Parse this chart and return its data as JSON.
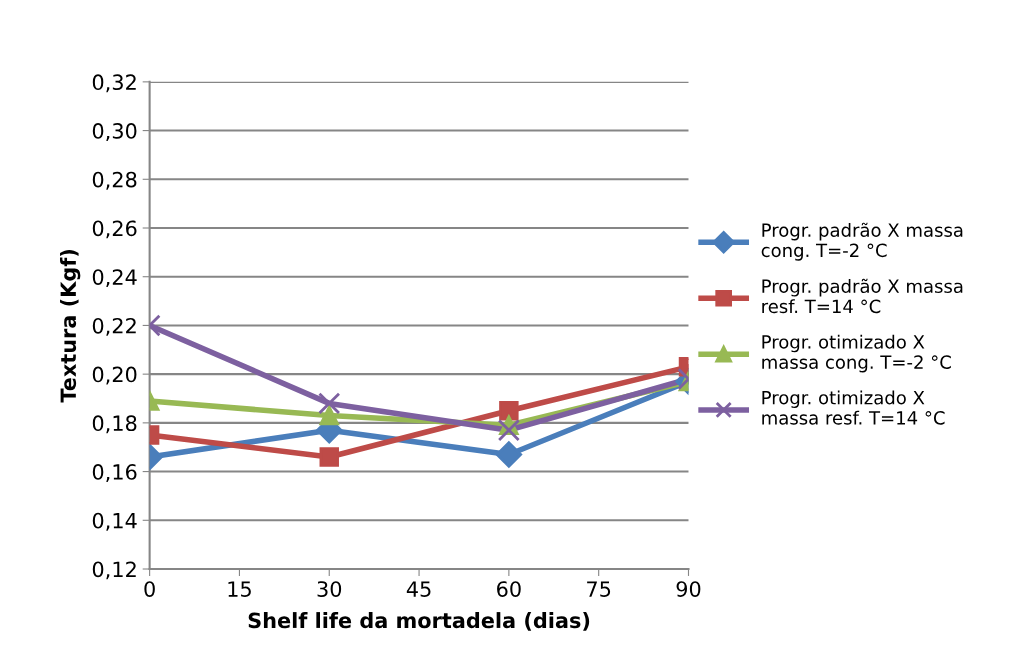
{
  "chart_data": {
    "type": "line",
    "xlabel": "Shelf life da mortadela (dias)",
    "ylabel": "Textura (Kgf)",
    "x": [
      0,
      30,
      60,
      90
    ],
    "series": [
      {
        "name": "Progr. padrão X massa\ncong. T=-2 °C",
        "color": "#4a7ebb",
        "marker": "diamond",
        "values": [
          0.166,
          0.177,
          0.167,
          0.197
        ]
      },
      {
        "name": "Progr. padrão X massa\nresf. T=14 °C",
        "color": "#be4b48",
        "marker": "square",
        "values": [
          0.175,
          0.166,
          0.185,
          0.203
        ]
      },
      {
        "name": "Progr. otimizado X\nmassa cong. T=-2 °C",
        "color": "#98b954",
        "marker": "triangle",
        "values": [
          0.189,
          0.183,
          0.179,
          0.197
        ]
      },
      {
        "name": "Progr. otimizado X\nmassa resf. T=14 °C",
        "color": "#7d60a0",
        "marker": "cross",
        "values": [
          0.22,
          0.188,
          0.177,
          0.198
        ]
      }
    ],
    "xlim": [
      0,
      90
    ],
    "xticks": [
      0,
      15,
      30,
      45,
      60,
      75,
      90
    ],
    "ylim": [
      0.12,
      0.32
    ],
    "yticks": [
      {
        "value": 0.12,
        "label": "0,12"
      },
      {
        "value": 0.14,
        "label": "0,14"
      },
      {
        "value": 0.16,
        "label": "0,16"
      },
      {
        "value": 0.18,
        "label": "0,18"
      },
      {
        "value": 0.2,
        "label": "0,20"
      },
      {
        "value": 0.22,
        "label": "0,22"
      },
      {
        "value": 0.24,
        "label": "0,24"
      },
      {
        "value": 0.26,
        "label": "0,26"
      },
      {
        "value": 0.28,
        "label": "0,28"
      },
      {
        "value": 0.3,
        "label": "0,30"
      },
      {
        "value": 0.32,
        "label": "0,32"
      }
    ],
    "grid": "y",
    "legend": "right",
    "line_style": "solid"
  }
}
